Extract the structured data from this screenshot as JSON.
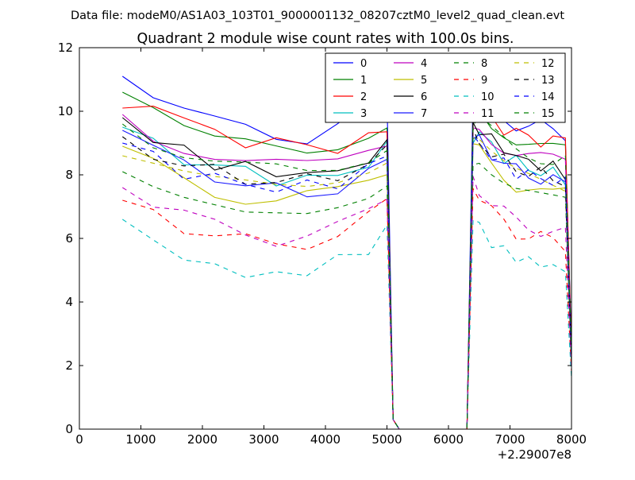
{
  "chart_data": {
    "type": "line",
    "suptitle": "Data file: modeM0/AS1A03_103T01_9000001132_08207cztM0_level2_quad_clean.evt",
    "title": "Quadrant 2 module wise count rates with 100.0s bins.",
    "xlabel": "",
    "ylabel": "",
    "x_offset_label": "+2.29007e8",
    "xlim": [
      0,
      8000
    ],
    "ylim": [
      0,
      12
    ],
    "x_ticks": [
      0,
      1000,
      2000,
      3000,
      4000,
      5000,
      6000,
      7000,
      8000
    ],
    "y_ticks": [
      0,
      2,
      4,
      6,
      8,
      10,
      12
    ],
    "legend_position": "top-right",
    "legend_columns": 4,
    "x": [
      700,
      1200,
      1700,
      2200,
      2700,
      3200,
      3700,
      4200,
      4700,
      5000,
      5100,
      5200,
      5300,
      5500,
      5700,
      5900,
      6100,
      6300,
      6400,
      6500,
      6700,
      6900,
      7100,
      7300,
      7500,
      7700,
      7900,
      8000
    ],
    "series": [
      {
        "name": "0",
        "color": "#0000ff",
        "dash": "solid",
        "values": [
          11.1,
          10.6,
          10.0,
          9.6,
          9.5,
          9.3,
          9.2,
          9.6,
          10.1,
          10.3,
          0.3,
          0.0,
          0.0,
          0.0,
          0.0,
          0.0,
          0.0,
          0.0,
          10.5,
          10.7,
          10.2,
          9.9,
          9.6,
          9.5,
          9.5,
          9.3,
          9.2,
          2.6
        ]
      },
      {
        "name": "1",
        "color": "#008000",
        "dash": "solid",
        "values": [
          10.6,
          9.9,
          9.3,
          9.0,
          9.0,
          8.9,
          8.8,
          9.0,
          9.4,
          9.7,
          0.3,
          0.0,
          0.0,
          0.0,
          0.0,
          0.0,
          0.0,
          0.0,
          10.0,
          10.2,
          9.7,
          9.4,
          9.1,
          9.0,
          8.9,
          8.8,
          8.7,
          2.4
        ]
      },
      {
        "name": "2",
        "color": "#ff0000",
        "dash": "solid",
        "values": [
          10.1,
          10.4,
          9.7,
          9.3,
          9.1,
          9.0,
          8.9,
          8.9,
          9.1,
          9.4,
          0.3,
          0.0,
          0.0,
          0.0,
          0.0,
          0.0,
          0.0,
          0.0,
          9.9,
          10.0,
          9.7,
          9.5,
          9.3,
          9.2,
          9.1,
          9.0,
          9.2,
          2.5
        ]
      },
      {
        "name": "3",
        "color": "#00bfbf",
        "dash": "solid",
        "values": [
          9.5,
          8.9,
          8.5,
          8.3,
          8.1,
          7.9,
          7.8,
          8.0,
          8.4,
          8.8,
          0.3,
          0.0,
          0.0,
          0.0,
          0.0,
          0.0,
          0.0,
          0.0,
          9.2,
          9.3,
          8.9,
          8.6,
          8.4,
          8.2,
          8.1,
          8.0,
          7.9,
          2.2
        ]
      },
      {
        "name": "4",
        "color": "#bf00bf",
        "dash": "solid",
        "values": [
          9.9,
          9.3,
          8.9,
          8.6,
          8.4,
          8.3,
          8.2,
          8.3,
          8.7,
          9.0,
          0.3,
          0.0,
          0.0,
          0.0,
          0.0,
          0.0,
          0.0,
          0.0,
          9.5,
          9.6,
          9.2,
          8.9,
          8.7,
          8.6,
          8.5,
          8.4,
          8.3,
          2.3
        ]
      },
      {
        "name": "5",
        "color": "#bfbf00",
        "dash": "solid",
        "values": [
          8.9,
          8.3,
          7.9,
          7.5,
          7.3,
          7.2,
          7.3,
          7.4,
          7.8,
          8.2,
          0.3,
          0.0,
          0.0,
          0.0,
          0.0,
          0.0,
          0.0,
          0.0,
          8.8,
          8.7,
          8.3,
          8.0,
          7.7,
          7.6,
          7.4,
          7.3,
          7.5,
          2.0
        ]
      },
      {
        "name": "6",
        "color": "#000000",
        "dash": "solid",
        "values": [
          9.8,
          9.2,
          8.7,
          8.4,
          8.2,
          8.1,
          8.0,
          8.1,
          8.5,
          8.9,
          0.3,
          0.0,
          0.0,
          0.0,
          0.0,
          0.0,
          0.0,
          0.0,
          9.4,
          9.5,
          9.1,
          8.8,
          8.6,
          8.4,
          8.3,
          8.2,
          8.1,
          2.3
        ]
      },
      {
        "name": "7",
        "color": "#1a1aff",
        "dash": "solid",
        "values": [
          9.4,
          8.8,
          8.3,
          8.0,
          7.7,
          7.5,
          7.4,
          7.6,
          8.0,
          8.4,
          0.3,
          0.0,
          0.0,
          0.0,
          0.0,
          0.0,
          0.0,
          0.0,
          9.0,
          9.1,
          8.7,
          8.4,
          8.1,
          8.0,
          7.9,
          7.8,
          7.7,
          2.1
        ]
      },
      {
        "name": "8",
        "color": "#008000",
        "dash": "dashed",
        "values": [
          8.1,
          7.7,
          7.4,
          7.2,
          7.0,
          7.0,
          7.0,
          7.2,
          7.5,
          7.9,
          0.3,
          0.0,
          0.0,
          0.0,
          0.0,
          0.0,
          0.0,
          0.0,
          8.4,
          8.4,
          8.0,
          7.7,
          7.5,
          7.4,
          7.3,
          7.2,
          7.1,
          2.0
        ]
      },
      {
        "name": "9",
        "color": "#ff0000",
        "dash": "dashed",
        "values": [
          7.2,
          6.9,
          6.4,
          6.1,
          5.9,
          5.8,
          5.9,
          6.1,
          6.6,
          7.2,
          0.3,
          0.0,
          0.0,
          0.0,
          0.0,
          0.0,
          0.0,
          0.0,
          7.8,
          7.3,
          6.8,
          6.5,
          6.2,
          6.1,
          6.0,
          5.9,
          5.8,
          1.8
        ]
      },
      {
        "name": "10",
        "color": "#00bfbf",
        "dash": "dashed",
        "values": [
          6.6,
          5.9,
          5.4,
          5.1,
          4.9,
          4.8,
          5.0,
          5.3,
          5.7,
          6.2,
          0.3,
          0.0,
          0.0,
          0.0,
          0.0,
          0.0,
          0.0,
          0.0,
          6.8,
          6.3,
          5.9,
          5.6,
          5.4,
          5.3,
          5.2,
          5.1,
          5.0,
          1.6
        ]
      },
      {
        "name": "11",
        "color": "#bf00bf",
        "dash": "dashed",
        "values": [
          7.6,
          7.1,
          6.7,
          6.4,
          6.2,
          6.0,
          6.1,
          6.3,
          6.8,
          7.4,
          0.3,
          0.0,
          0.0,
          0.0,
          0.0,
          0.0,
          0.0,
          0.0,
          8.0,
          7.6,
          7.1,
          6.8,
          6.5,
          6.4,
          6.3,
          6.2,
          6.1,
          1.9
        ]
      },
      {
        "name": "12",
        "color": "#bfbf00",
        "dash": "dashed",
        "values": [
          8.6,
          8.2,
          7.9,
          7.7,
          7.6,
          7.5,
          7.5,
          7.7,
          8.1,
          8.5,
          0.3,
          0.0,
          0.0,
          0.0,
          0.0,
          0.0,
          0.0,
          0.0,
          9.0,
          8.9,
          8.5,
          8.2,
          8.0,
          7.9,
          7.8,
          7.7,
          7.6,
          2.1
        ]
      },
      {
        "name": "13",
        "color": "#000000",
        "dash": "dashed",
        "values": [
          9.2,
          8.7,
          8.3,
          8.1,
          7.9,
          7.8,
          7.8,
          8.0,
          8.4,
          8.7,
          0.3,
          0.0,
          0.0,
          0.0,
          0.0,
          0.0,
          0.0,
          0.0,
          9.2,
          9.1,
          8.7,
          8.4,
          8.2,
          8.1,
          8.0,
          7.9,
          7.8,
          2.2
        ]
      },
      {
        "name": "14",
        "color": "#0000ff",
        "dash": "dashed",
        "values": [
          9.0,
          8.5,
          8.1,
          7.9,
          7.7,
          7.6,
          7.6,
          7.8,
          8.2,
          8.6,
          0.3,
          0.0,
          0.0,
          0.0,
          0.0,
          0.0,
          0.0,
          0.0,
          9.1,
          9.0,
          8.6,
          8.3,
          8.1,
          8.0,
          7.9,
          7.8,
          7.7,
          2.2
        ]
      },
      {
        "name": "15",
        "color": "#008000",
        "dash": "dashed",
        "values": [
          9.6,
          9.1,
          8.7,
          8.4,
          8.2,
          8.1,
          8.0,
          8.2,
          8.6,
          9.0,
          0.3,
          0.0,
          0.0,
          0.0,
          0.0,
          0.0,
          0.0,
          0.0,
          9.6,
          9.7,
          9.3,
          9.0,
          8.8,
          8.7,
          8.6,
          8.5,
          8.6,
          2.4
        ]
      }
    ]
  }
}
